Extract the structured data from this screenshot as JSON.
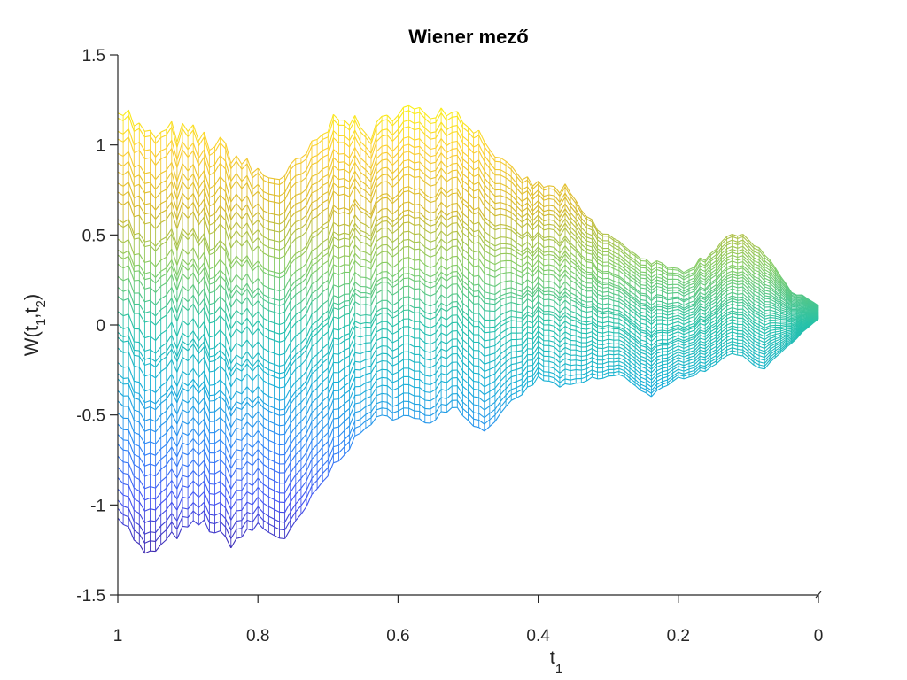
{
  "chart_data": {
    "type": "line",
    "title": "Wiener mező",
    "xlabel": {
      "main": "t",
      "sub": "1"
    },
    "ylabel": {
      "prefix": "W(t",
      "sub1": "1",
      "sep": ",t",
      "sub2": "2",
      "suffix": ")"
    },
    "xlim": [
      1,
      0
    ],
    "ylim": [
      -1.5,
      1.5
    ],
    "x_reversed": true,
    "xticks": [
      1,
      0.8,
      0.6,
      0.4,
      0.2,
      0
    ],
    "xtick_labels": [
      "1",
      "0.8",
      "0.6",
      "0.4",
      "0.2",
      "0"
    ],
    "yticks": [
      1.5,
      1,
      0.5,
      0,
      -0.5,
      -1,
      -1.5
    ],
    "ytick_labels": [
      "1.5",
      "1",
      "0.5",
      "0",
      "-0.5",
      "-1",
      "-1.5"
    ],
    "grid": false,
    "colormap": "parula",
    "colormap_stops": [
      "#3e26a8",
      "#4455f4",
      "#2d8af5",
      "#18b0d6",
      "#25c1a9",
      "#83cc66",
      "#d6b92e",
      "#fbce34",
      "#f9fb0e"
    ],
    "line_color_axis": "#262626",
    "series_note_x": [
      1.0,
      0.96,
      0.92,
      0.88,
      0.84,
      0.8,
      0.76,
      0.72,
      0.68,
      0.64,
      0.6,
      0.56,
      0.52,
      0.48,
      0.44,
      0.4,
      0.36,
      0.32,
      0.28,
      0.24,
      0.2,
      0.16,
      0.12,
      0.08,
      0.04,
      0.0
    ],
    "top_envelope": [
      1.25,
      1.05,
      1.08,
      1.05,
      0.97,
      0.85,
      0.83,
      1.0,
      1.2,
      1.05,
      1.22,
      1.18,
      1.2,
      1.05,
      0.85,
      0.78,
      0.75,
      0.55,
      0.45,
      0.35,
      0.3,
      0.38,
      0.52,
      0.42,
      0.2,
      0.1
    ],
    "bottom_envelope": [
      -1.05,
      -1.3,
      -1.18,
      -1.1,
      -1.22,
      -1.12,
      -1.2,
      -0.95,
      -0.72,
      -0.55,
      -0.5,
      -0.55,
      -0.45,
      -0.6,
      -0.45,
      -0.3,
      -0.35,
      -0.3,
      -0.28,
      -0.4,
      -0.3,
      -0.25,
      -0.15,
      -0.25,
      -0.1,
      0.03
    ],
    "series_count": 40
  }
}
